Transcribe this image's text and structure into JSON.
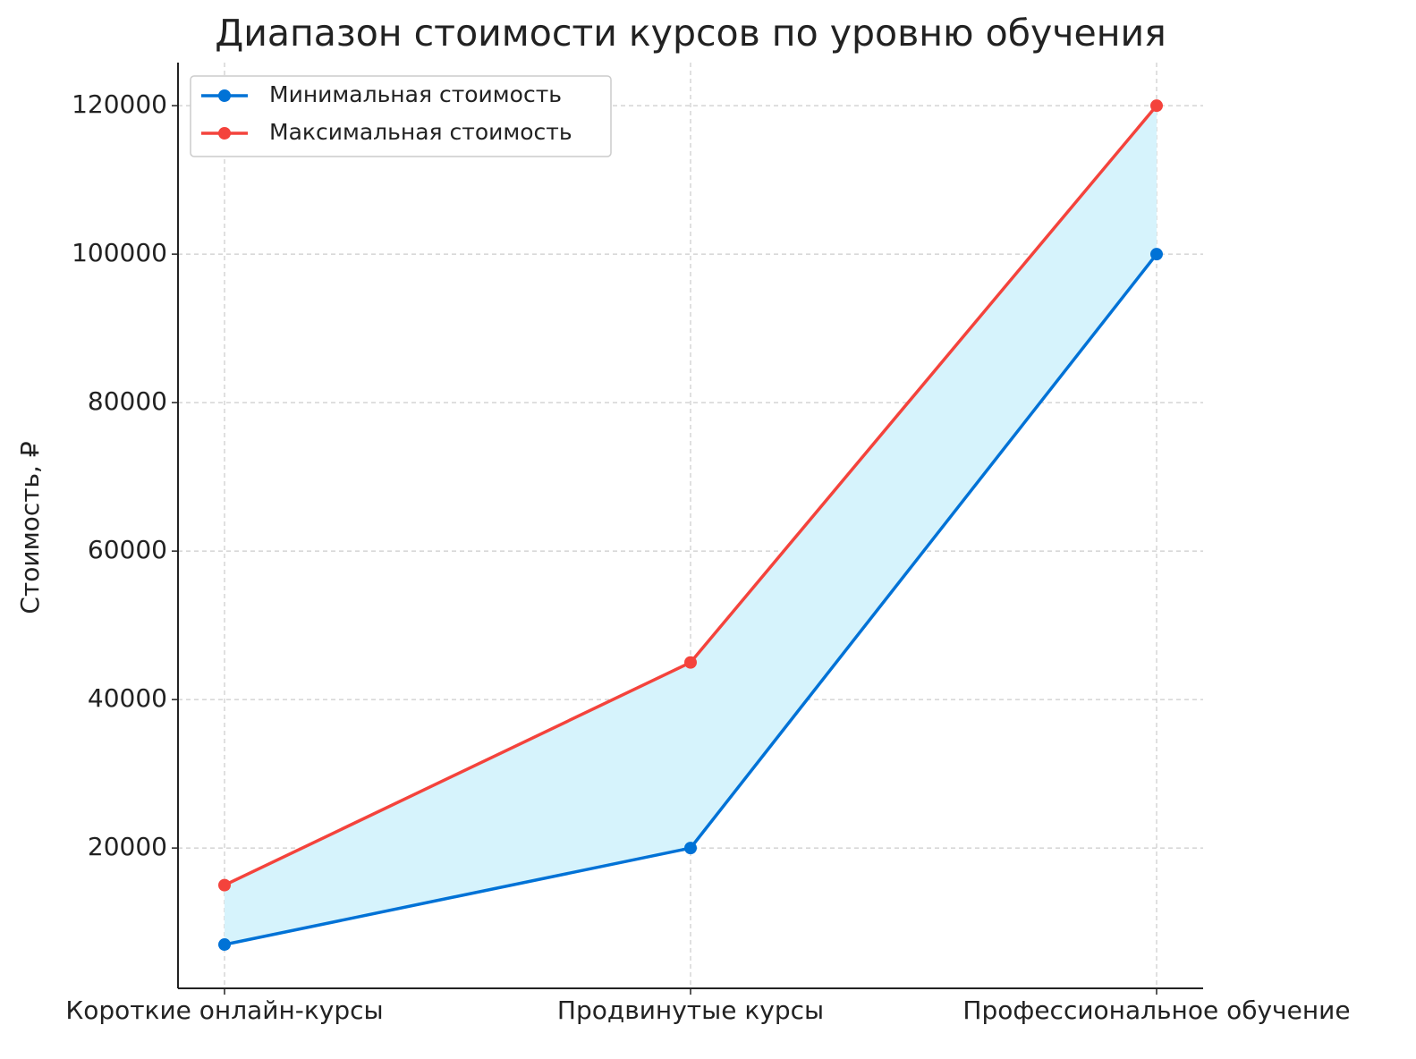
{
  "chart_data": {
    "type": "line",
    "title": "Диапазон стоимости курсов по уровню обучения",
    "y_label": "Стоимость, ₽",
    "categories": [
      "Короткие онлайн-курсы",
      "Продвинутые курсы",
      "Профессиональное обучение"
    ],
    "series": [
      {
        "name": "Минимальная стоимость",
        "color": "#0072d6",
        "values": [
          7000,
          20000,
          100000
        ]
      },
      {
        "name": "Максимальная стоимость",
        "color": "#f4433c",
        "values": [
          15000,
          45000,
          120000
        ]
      }
    ],
    "fill_between": true,
    "fill_color": "#d6f3fc",
    "ylim": [
      1100,
      125800
    ],
    "yticks": [
      20000,
      40000,
      60000,
      80000,
      100000,
      120000
    ],
    "grid": true,
    "legend": "upper-left"
  }
}
